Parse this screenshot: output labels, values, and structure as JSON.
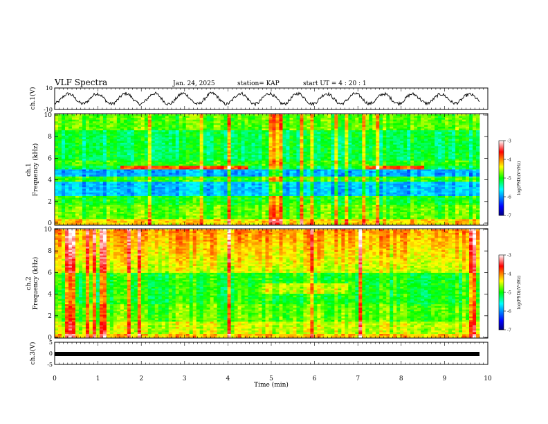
{
  "header": {
    "title": "VLF Spectra",
    "date": "Jan. 24, 2025",
    "station": "station= KAP",
    "start_ut": "start  UT =   4 : 20 : 1"
  },
  "chart_data": [
    {
      "type": "line",
      "name": "ch1-waveform",
      "ylabel": "ch.1(V)",
      "ylim": [
        -10,
        10
      ],
      "yticks": [
        {
          "v": 10,
          "label": "10"
        },
        {
          "v": -10,
          "label": "-10"
        }
      ],
      "xlim": [
        0,
        10
      ],
      "description_series": "oscillating voltage, period ~0.65 min, amplitude ~4 V with noise"
    },
    {
      "type": "heatmap",
      "name": "ch1-spectrogram",
      "ylabel_top": "ch.1",
      "ylabel": "Frequency  (kHz)",
      "ylim": [
        0,
        10
      ],
      "yticks": [
        "0",
        "2",
        "4",
        "6",
        "8",
        "10"
      ],
      "xlim": [
        0,
        10
      ],
      "colorbar": {
        "label": "log(PSD)(V²/Hz)",
        "range": [
          -7,
          -3
        ],
        "ticks": [
          "-3",
          "-4",
          "-5",
          "-6",
          "-7"
        ]
      }
    },
    {
      "type": "heatmap",
      "name": "ch2-spectrogram",
      "ylabel_top": "ch.2",
      "ylabel": "Frequency  (kHz)",
      "ylim": [
        0,
        10
      ],
      "yticks": [
        "0",
        "2",
        "4",
        "6",
        "8",
        "10"
      ],
      "xlim": [
        0,
        10
      ],
      "colorbar": {
        "label": "log(PSD)(V²/Hz)",
        "range": [
          -7,
          -3
        ],
        "ticks": [
          "-3",
          "-4",
          "-5",
          "-6",
          "-7"
        ]
      }
    },
    {
      "type": "line",
      "name": "ch3-waveform",
      "ylabel": "ch.3(V)",
      "ylim": [
        -5,
        5
      ],
      "yticks": [
        {
          "v": 5,
          "label": "5"
        },
        {
          "v": 0,
          "label": "0"
        },
        {
          "v": -5,
          "label": "-5"
        }
      ],
      "xlim": [
        0,
        10
      ],
      "level": -0.3
    }
  ],
  "xaxis": {
    "label": "Time  (min)",
    "ticks": [
      "0",
      "1",
      "2",
      "3",
      "4",
      "5",
      "6",
      "7",
      "8",
      "9",
      "10"
    ]
  }
}
